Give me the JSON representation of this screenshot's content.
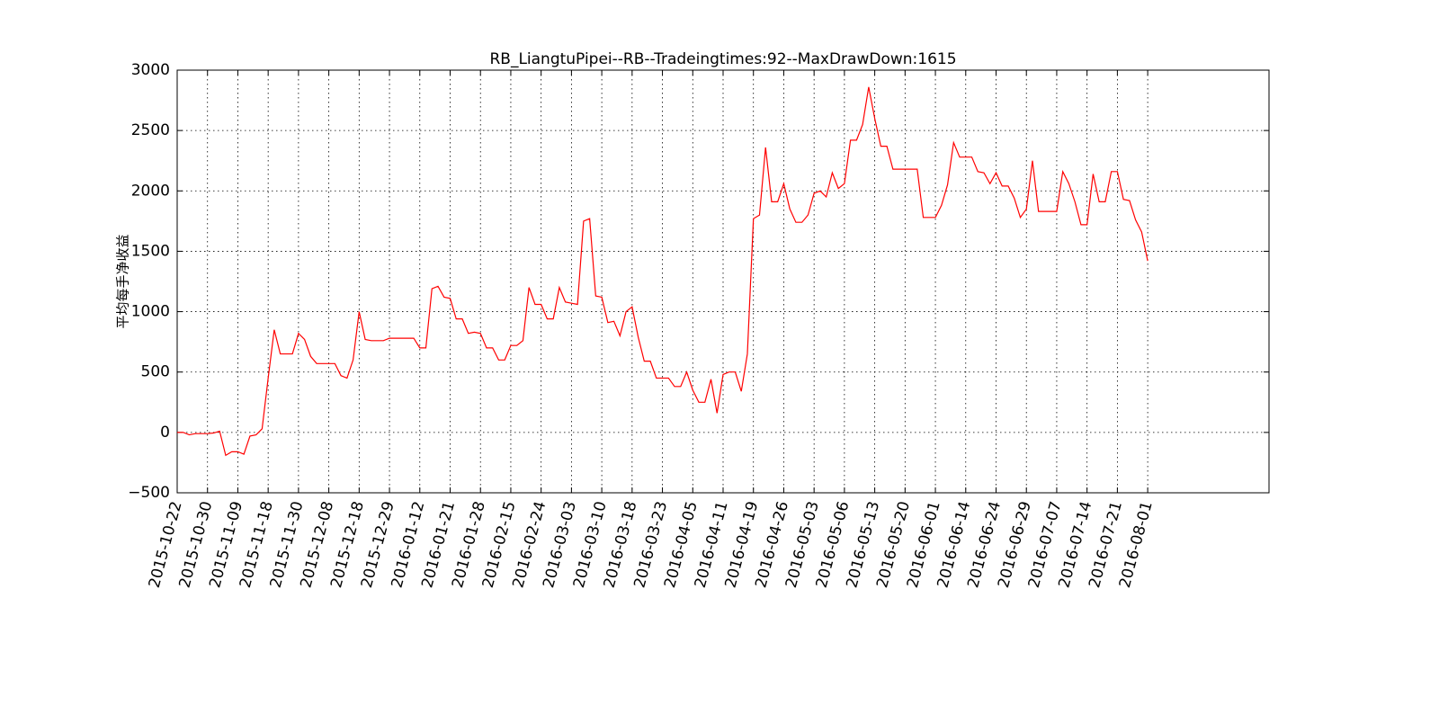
{
  "chart_data": {
    "type": "line",
    "title": "RB_LiangtuPipei--RB--Tradeingtimes:92--MaxDrawDown:1615",
    "y_label": "平均每手净收益",
    "categories": [
      "2015-10-22",
      null,
      null,
      null,
      null,
      "2015-10-30",
      null,
      null,
      null,
      null,
      "2015-11-09",
      null,
      null,
      null,
      null,
      "2015-11-18",
      null,
      null,
      null,
      null,
      "2015-11-30",
      null,
      null,
      null,
      null,
      "2015-12-08",
      null,
      null,
      null,
      null,
      "2015-12-18",
      null,
      null,
      null,
      null,
      "2015-12-29",
      null,
      null,
      null,
      null,
      "2016-01-12",
      null,
      null,
      null,
      null,
      "2016-01-21",
      null,
      null,
      null,
      null,
      "2016-01-28",
      null,
      null,
      null,
      null,
      "2016-02-15",
      null,
      null,
      null,
      null,
      "2016-02-24",
      null,
      null,
      null,
      null,
      "2016-03-03",
      null,
      null,
      null,
      null,
      "2016-03-10",
      null,
      null,
      null,
      null,
      "2016-03-18",
      null,
      null,
      null,
      null,
      "2016-03-23",
      null,
      null,
      null,
      null,
      "2016-04-05",
      null,
      null,
      null,
      null,
      "2016-04-11",
      null,
      null,
      null,
      null,
      "2016-04-19",
      null,
      null,
      null,
      null,
      "2016-04-26",
      null,
      null,
      null,
      null,
      "2016-05-03",
      null,
      null,
      null,
      null,
      "2016-05-06",
      null,
      null,
      null,
      null,
      "2016-05-13",
      null,
      null,
      null,
      null,
      "2016-05-20",
      null,
      null,
      null,
      null,
      "2016-06-01",
      null,
      null,
      null,
      null,
      "2016-06-14",
      null,
      null,
      null,
      null,
      "2016-06-24",
      null,
      null,
      null,
      null,
      "2016-06-29",
      null,
      null,
      null,
      null,
      "2016-07-07",
      null,
      null,
      null,
      null,
      "2016-07-14",
      null,
      null,
      null,
      null,
      "2016-07-21",
      null,
      null,
      null,
      null,
      "2016-08-01"
    ],
    "series": [
      {
        "color": "#ff0000",
        "values": [
          0,
          0,
          -20,
          -10,
          -10,
          -10,
          -5,
          10,
          -190,
          -160,
          -160,
          -180,
          -30,
          -20,
          30,
          450,
          850,
          650,
          650,
          650,
          820,
          770,
          630,
          570,
          570,
          570,
          570,
          470,
          450,
          600,
          1000,
          770,
          760,
          760,
          760,
          780,
          780,
          780,
          780,
          780,
          700,
          700,
          1190,
          1210,
          1120,
          1110,
          940,
          940,
          820,
          830,
          820,
          700,
          700,
          600,
          600,
          720,
          720,
          760,
          1200,
          1060,
          1060,
          940,
          940,
          1200,
          1080,
          1070,
          1060,
          1750,
          1770,
          1130,
          1120,
          910,
          920,
          800,
          1000,
          1040,
          790,
          590,
          590,
          450,
          450,
          450,
          380,
          380,
          500,
          350,
          250,
          250,
          440,
          160,
          480,
          500,
          500,
          340,
          650,
          1770,
          1800,
          2360,
          1910,
          1910,
          2060,
          1850,
          1740,
          1740,
          1800,
          1980,
          2000,
          1950,
          2150,
          2020,
          2060,
          2420,
          2420,
          2550,
          2860,
          2600,
          2370,
          2370,
          2180,
          2180,
          2180,
          2180,
          2180,
          1780,
          1780,
          1780,
          1880,
          2050,
          2400,
          2280,
          2280,
          2280,
          2160,
          2150,
          2060,
          2150,
          2040,
          2040,
          1940,
          1780,
          1850,
          2250,
          1830,
          1830,
          1830,
          1830,
          2160,
          2060,
          1910,
          1720,
          1720,
          2140,
          1910,
          1910,
          2160,
          2160,
          1930,
          1920,
          1760,
          1660,
          1420
        ]
      }
    ],
    "xlim": [
      0,
      180
    ],
    "ylim": [
      -500,
      3000
    ],
    "yticks": [
      {
        "value": -500,
        "label": "−500"
      },
      0,
      500,
      1000,
      1500,
      2000,
      2500,
      3000
    ],
    "grid": true
  }
}
